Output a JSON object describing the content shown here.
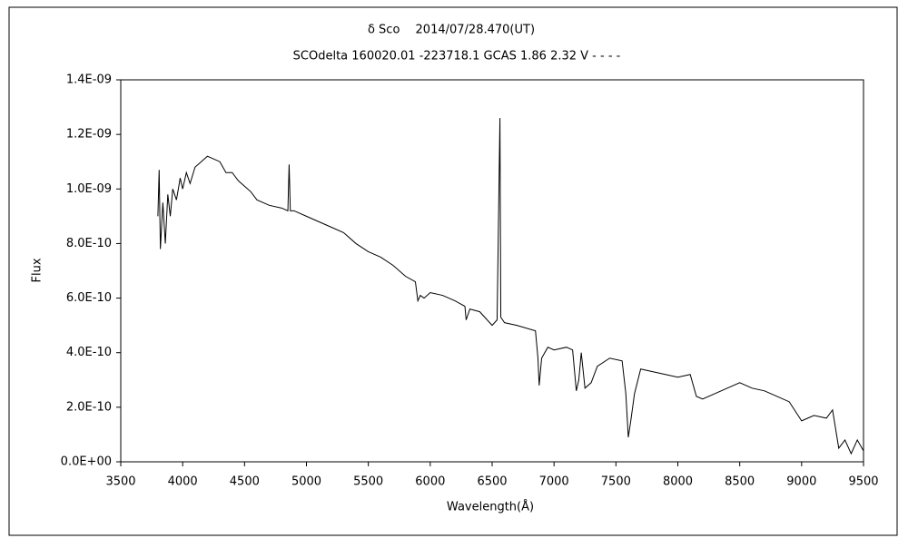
{
  "chart_data": {
    "type": "line",
    "title": "δ Sco　 2014/07/28.470(UT)",
    "subtitle": "SCOdelta 160020.01 -223718.1 GCAS 1.86 2.32 V - - - -",
    "x_label": "Wavelength(Å)",
    "y_label": "Flux",
    "color": "#000000",
    "x": [
      3800,
      3810,
      3820,
      3840,
      3860,
      3880,
      3900,
      3920,
      3950,
      3980,
      4000,
      4030,
      4060,
      4100,
      4150,
      4200,
      4250,
      4300,
      4350,
      4400,
      4450,
      4500,
      4550,
      4600,
      4650,
      4700,
      4800,
      4850,
      4860,
      4870,
      4900,
      5000,
      5100,
      5200,
      5300,
      5400,
      5500,
      5600,
      5700,
      5800,
      5880,
      5900,
      5920,
      5950,
      6000,
      6100,
      6200,
      6280,
      6290,
      6320,
      6400,
      6500,
      6540,
      6555,
      6563,
      6570,
      6600,
      6700,
      6850,
      6870,
      6880,
      6900,
      6950,
      7000,
      7100,
      7150,
      7180,
      7200,
      7220,
      7250,
      7300,
      7350,
      7450,
      7550,
      7580,
      7600,
      7620,
      7650,
      7700,
      7800,
      7900,
      8000,
      8100,
      8150,
      8200,
      8300,
      8400,
      8500,
      8600,
      8700,
      8800,
      8900,
      9000,
      9050,
      9100,
      9200,
      9250,
      9300,
      9350,
      9400,
      9450,
      9500
    ],
    "values": [
      9e-10,
      1.07e-09,
      7.8e-10,
      9.5e-10,
      8e-10,
      9.8e-10,
      9e-10,
      1e-09,
      9.6e-10,
      1.04e-09,
      1e-09,
      1.06e-09,
      1.02e-09,
      1.08e-09,
      1.1e-09,
      1.12e-09,
      1.11e-09,
      1.1e-09,
      1.06e-09,
      1.06e-09,
      1.03e-09,
      1.01e-09,
      9.9e-10,
      9.6e-10,
      9.5e-10,
      9.4e-10,
      9.3e-10,
      9.2e-10,
      1.09e-09,
      9.2e-10,
      9.2e-10,
      9e-10,
      8.8e-10,
      8.6e-10,
      8.4e-10,
      8e-10,
      7.7e-10,
      7.5e-10,
      7.2e-10,
      6.8e-10,
      6.6e-10,
      5.9e-10,
      6.1e-10,
      6e-10,
      6.2e-10,
      6.1e-10,
      5.9e-10,
      5.7e-10,
      5.2e-10,
      5.6e-10,
      5.5e-10,
      5e-10,
      5.2e-10,
      1e-09,
      1.26e-09,
      5.3e-10,
      5.1e-10,
      5e-10,
      4.8e-10,
      3.8e-10,
      2.8e-10,
      3.8e-10,
      4.2e-10,
      4.1e-10,
      4.2e-10,
      4.1e-10,
      2.6e-10,
      3e-10,
      4e-10,
      2.7e-10,
      2.9e-10,
      3.5e-10,
      3.8e-10,
      3.7e-10,
      2.5e-10,
      9e-11,
      1.5e-10,
      2.5e-10,
      3.4e-10,
      3.3e-10,
      3.2e-10,
      3.1e-10,
      3.2e-10,
      2.4e-10,
      2.3e-10,
      2.5e-10,
      2.7e-10,
      2.9e-10,
      2.7e-10,
      2.6e-10,
      2.4e-10,
      2.2e-10,
      1.5e-10,
      1.6e-10,
      1.7e-10,
      1.6e-10,
      1.9e-10,
      5e-11,
      8e-11,
      3e-11,
      8e-11,
      4e-11
    ],
    "xlim": [
      3500,
      9500
    ],
    "xticks": [
      3500,
      4000,
      4500,
      5000,
      5500,
      6000,
      6500,
      7000,
      7500,
      8000,
      8500,
      9000,
      9500
    ],
    "ylim": [
      0,
      1.4e-09
    ],
    "yticks": [
      {
        "value": 0,
        "label": "0.0E+00"
      },
      {
        "value": 2e-10,
        "label": "2.0E-10"
      },
      {
        "value": 4e-10,
        "label": "4.0E-10"
      },
      {
        "value": 6e-10,
        "label": "6.0E-10"
      },
      {
        "value": 8e-10,
        "label": "8.0E-10"
      },
      {
        "value": 1e-09,
        "label": "1.0E-09"
      },
      {
        "value": 1.2e-09,
        "label": "1.2E-09"
      },
      {
        "value": 1.4e-09,
        "label": "1.4E-09"
      }
    ]
  }
}
